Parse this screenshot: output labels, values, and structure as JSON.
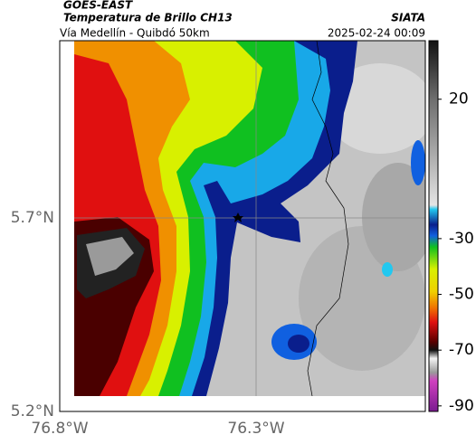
{
  "header": {
    "source": "GOES-EAST",
    "title": "Temperatura de Brillo CH13",
    "subtitle": "Vía Medellín - Quibdó 50km",
    "brand": "SIATA",
    "timestamp": "2025-02-24 00:09"
  },
  "map": {
    "lat_labels": [
      "5.7°N",
      "5.2°N"
    ],
    "lon_labels": [
      "76.8°W",
      "76.3°W"
    ]
  },
  "colorbar": {
    "lim": [
      -92,
      41
    ],
    "ticks": [
      20,
      -30,
      -50,
      -70,
      -90
    ],
    "stops": [
      {
        "value": 41,
        "color": "#111111"
      },
      {
        "value": 20,
        "color": "#6e6e6e"
      },
      {
        "value": -18,
        "color": "#e4e4e4"
      },
      {
        "value": -19.5,
        "color": "#22c8f0"
      },
      {
        "value": -25,
        "color": "#0a1e8c"
      },
      {
        "value": -29,
        "color": "#1060e0"
      },
      {
        "value": -33,
        "color": "#10c020"
      },
      {
        "value": -41,
        "color": "#d8f000"
      },
      {
        "value": -49,
        "color": "#f0d000"
      },
      {
        "value": -55,
        "color": "#f07000"
      },
      {
        "value": -60,
        "color": "#e01010"
      },
      {
        "value": -67,
        "color": "#5a0000"
      },
      {
        "value": -70,
        "color": "#101010"
      },
      {
        "value": -73,
        "color": "#f4f4f4"
      },
      {
        "value": -78,
        "color": "#9a9a9a"
      },
      {
        "value": -81,
        "color": "#d040c0"
      },
      {
        "value": -92,
        "color": "#7a1a90"
      }
    ]
  }
}
